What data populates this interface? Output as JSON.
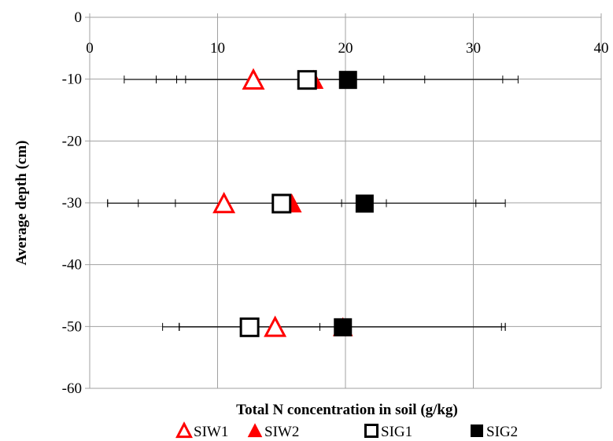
{
  "chart_data": {
    "type": "scatter",
    "title": "",
    "xlabel": "Total N concentration in soil (g/kg)",
    "ylabel": "Average depth (cm)",
    "xlim": [
      0,
      40
    ],
    "ylim": [
      -60,
      0
    ],
    "x_ticks": [
      0,
      10,
      20,
      30,
      40
    ],
    "y_ticks": [
      0,
      -10,
      -20,
      -30,
      -40,
      -50,
      -60
    ],
    "grid": true,
    "legend_position": "bottom",
    "series": [
      {
        "name": "SIW1",
        "marker": "triangle-open",
        "color": "#ff0000",
        "points": [
          {
            "x": 12.8,
            "y": -10,
            "xerr_low": 10.1,
            "xerr_high": 10.2
          },
          {
            "x": 10.5,
            "y": -30,
            "xerr_low": 9.1,
            "xerr_high": 9.2
          },
          {
            "x": 14.5,
            "y": -50,
            "xerr_low": 7.5,
            "xerr_high": 18.0
          }
        ]
      },
      {
        "name": "SIW2",
        "marker": "triangle-filled",
        "color": "#ff0000",
        "points": [
          {
            "x": 17.5,
            "y": -10,
            "xerr_low": 10.7,
            "xerr_high": 14.8
          },
          {
            "x": 15.8,
            "y": -30,
            "xerr_low": 12.0,
            "xerr_high": 7.4
          },
          {
            "x": 19.8,
            "y": -50,
            "xerr_low": 12.8,
            "xerr_high": 12.4
          }
        ]
      },
      {
        "name": "SIG1",
        "marker": "square-open",
        "color": "#000000",
        "points": [
          {
            "x": 17.0,
            "y": -10,
            "xerr_low": 9.5,
            "xerr_high": 9.2
          },
          {
            "x": 15.0,
            "y": -30,
            "xerr_low": 8.3,
            "xerr_high": 15.2
          },
          {
            "x": 12.5,
            "y": -50,
            "xerr_low": 5.5,
            "xerr_high": 5.5
          }
        ]
      },
      {
        "name": "SIG2",
        "marker": "square-filled",
        "color": "#000000",
        "points": [
          {
            "x": 20.2,
            "y": -10,
            "xerr_low": 15.0,
            "xerr_high": 13.3
          },
          {
            "x": 21.5,
            "y": -30,
            "xerr_low": 20.1,
            "xerr_high": 11.0
          },
          {
            "x": 19.8,
            "y": -50,
            "xerr_low": 14.1,
            "xerr_high": 12.7
          }
        ]
      }
    ]
  }
}
